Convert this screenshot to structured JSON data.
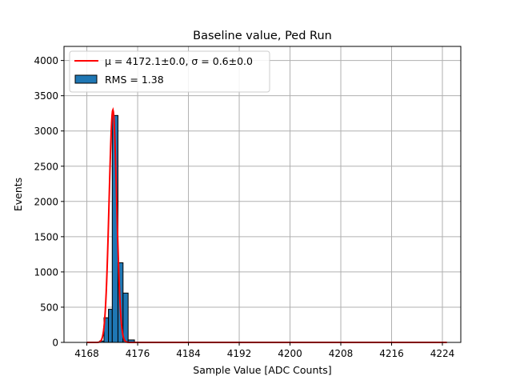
{
  "chart_data": {
    "type": "bar",
    "title": "Baseline value, Ped Run",
    "xlabel": "Sample Value [ADC Counts]",
    "ylabel": "Events",
    "xlim": [
      4164.4,
      4226.9
    ],
    "ylim": [
      0,
      4200
    ],
    "xticks": [
      4168,
      4176,
      4184,
      4192,
      4200,
      4208,
      4216,
      4224
    ],
    "yticks": [
      0,
      500,
      1000,
      1500,
      2000,
      2500,
      3000,
      3500,
      4000
    ],
    "grid": true,
    "legend_position": "top-left",
    "bins": [
      {
        "x0": 4170.0,
        "x1": 4170.7,
        "value": 20
      },
      {
        "x0": 4170.7,
        "x1": 4171.4,
        "value": 350
      },
      {
        "x0": 4171.4,
        "x1": 4172.0,
        "value": 470
      },
      {
        "x0": 4172.0,
        "x1": 4172.9,
        "value": 3220
      },
      {
        "x0": 4172.9,
        "x1": 4173.7,
        "value": 1130
      },
      {
        "x0": 4173.7,
        "x1": 4174.5,
        "value": 700
      },
      {
        "x0": 4174.5,
        "x1": 4175.5,
        "value": 35
      },
      {
        "x0": 4175.5,
        "x1": 4176.5,
        "value": 5
      }
    ],
    "fit": {
      "label": "μ = 4172.1±0.0, σ = 0.6±0.0",
      "mu": 4172.1,
      "sigma": 0.6,
      "amplitude": 3300,
      "x_range": [
        4168.0,
        4224.7
      ]
    },
    "histogram_label": "RMS = 1.38",
    "colors": {
      "bars": "#1f77b4",
      "bar_edge": "#000000",
      "fit": "#ff0000",
      "grid": "#b0b0b0"
    }
  }
}
